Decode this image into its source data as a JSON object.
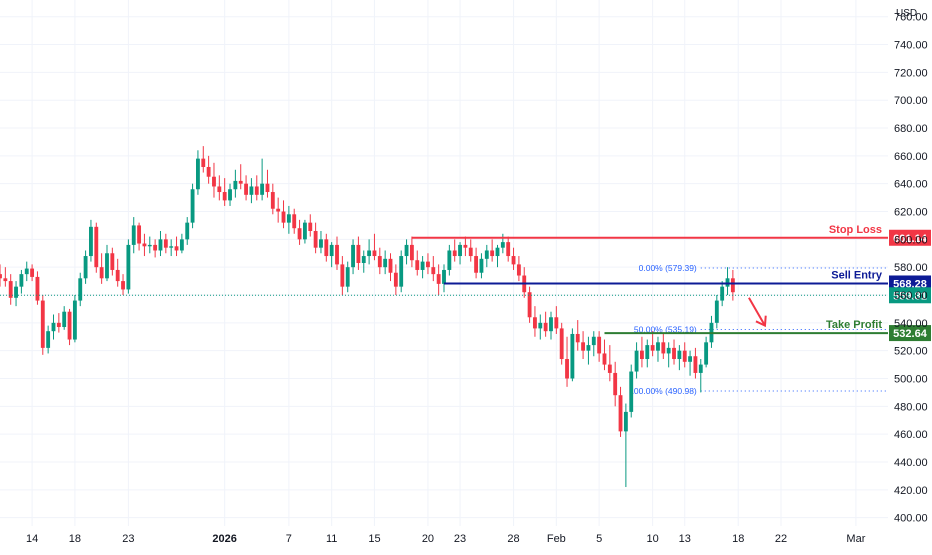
{
  "chart_data": {
    "type": "candlestick",
    "currency_label": "USD",
    "y_ticks": [
      400,
      420,
      440,
      460,
      480,
      500,
      520,
      540,
      560,
      580,
      600,
      620,
      640,
      660,
      680,
      700,
      720,
      740,
      760
    ],
    "y_tick_labels": [
      "400.00",
      "420.00",
      "440.00",
      "460.00",
      "480.00",
      "500.00",
      "520.00",
      "540.00",
      "560.00",
      "580.00",
      "600.00",
      "620.00",
      "640.00",
      "660.00",
      "680.00",
      "700.00",
      "720.00",
      "740.00",
      "760.00"
    ],
    "ylim": [
      394,
      772
    ],
    "x_ticks": [
      {
        "label": "14",
        "day": -18
      },
      {
        "label": "18",
        "day": -14
      },
      {
        "label": "23",
        "day": -9
      },
      {
        "label": "2026",
        "day": 0,
        "bold": true
      },
      {
        "label": "7",
        "day": 6
      },
      {
        "label": "11",
        "day": 10
      },
      {
        "label": "15",
        "day": 14
      },
      {
        "label": "20",
        "day": 19
      },
      {
        "label": "23",
        "day": 22
      },
      {
        "label": "28",
        "day": 27
      },
      {
        "label": "Feb",
        "day": 31
      },
      {
        "label": "5",
        "day": 35
      },
      {
        "label": "10",
        "day": 40
      },
      {
        "label": "13",
        "day": 43
      },
      {
        "label": "18",
        "day": 48
      },
      {
        "label": "22",
        "day": 52
      },
      {
        "label": "Mar",
        "day": 59
      }
    ],
    "xlim": [
      -21,
      62
    ],
    "ohlc": [
      [
        -21,
        575,
        582,
        566,
        572
      ],
      [
        -20.5,
        572,
        580,
        566,
        570
      ],
      [
        -20,
        570,
        575,
        553,
        558
      ],
      [
        -19.5,
        558,
        570,
        552,
        566
      ],
      [
        -19,
        566,
        578,
        561,
        575
      ],
      [
        -18.5,
        575,
        584,
        570,
        579
      ],
      [
        -18,
        579,
        582,
        570,
        573
      ],
      [
        -17.5,
        573,
        577,
        553,
        556
      ],
      [
        -17,
        556,
        560,
        517,
        522
      ],
      [
        -16.5,
        522,
        538,
        518,
        534
      ],
      [
        -16,
        534,
        546,
        528,
        540
      ],
      [
        -15.5,
        540,
        547,
        533,
        537
      ],
      [
        -15,
        537,
        552,
        535,
        548
      ],
      [
        -14.5,
        548,
        550,
        524,
        528
      ],
      [
        -14,
        528,
        560,
        526,
        556
      ],
      [
        -13.5,
        556,
        576,
        552,
        572
      ],
      [
        -13,
        572,
        592,
        568,
        588
      ],
      [
        -12.5,
        588,
        614,
        584,
        609
      ],
      [
        -12,
        609,
        612,
        576,
        580
      ],
      [
        -11.5,
        580,
        590,
        568,
        572
      ],
      [
        -11,
        572,
        596,
        570,
        590
      ],
      [
        -10.5,
        590,
        594,
        574,
        578
      ],
      [
        -10,
        578,
        586,
        566,
        570
      ],
      [
        -9.5,
        570,
        575,
        560,
        564
      ],
      [
        -9,
        564,
        600,
        561,
        596
      ],
      [
        -8.5,
        596,
        616,
        590,
        610
      ],
      [
        -8,
        610,
        612,
        592,
        597
      ],
      [
        -7.5,
        597,
        604,
        588,
        595
      ],
      [
        -7,
        595,
        602,
        590,
        596
      ],
      [
        -6.5,
        596,
        600,
        587,
        592
      ],
      [
        -6,
        592,
        606,
        588,
        600
      ],
      [
        -5.5,
        600,
        604,
        590,
        594
      ],
      [
        -5,
        594,
        600,
        588,
        595
      ],
      [
        -4.5,
        595,
        602,
        588,
        592
      ],
      [
        -4,
        592,
        604,
        590,
        600
      ],
      [
        -3.5,
        600,
        616,
        596,
        612
      ],
      [
        -3,
        612,
        640,
        608,
        636
      ],
      [
        -2.5,
        636,
        664,
        632,
        658
      ],
      [
        -2,
        658,
        667,
        648,
        652
      ],
      [
        -1.5,
        652,
        660,
        640,
        645
      ],
      [
        -1,
        645,
        655,
        630,
        638
      ],
      [
        -0.5,
        638,
        646,
        628,
        634
      ],
      [
        0,
        634,
        644,
        624,
        628
      ],
      [
        0.5,
        628,
        640,
        624,
        636
      ],
      [
        1,
        636,
        650,
        630,
        642
      ],
      [
        1.5,
        642,
        654,
        636,
        640
      ],
      [
        2,
        640,
        646,
        628,
        632
      ],
      [
        2.5,
        632,
        644,
        626,
        638
      ],
      [
        3,
        638,
        646,
        628,
        632
      ],
      [
        3.5,
        632,
        658,
        628,
        640
      ],
      [
        4,
        640,
        650,
        630,
        634
      ],
      [
        4.5,
        634,
        640,
        618,
        622
      ],
      [
        5,
        622,
        630,
        612,
        620
      ],
      [
        5.5,
        620,
        628,
        608,
        612
      ],
      [
        6,
        612,
        624,
        604,
        618
      ],
      [
        6.5,
        618,
        622,
        604,
        608
      ],
      [
        7,
        608,
        614,
        596,
        600
      ],
      [
        7.5,
        600,
        614,
        597,
        612
      ],
      [
        8,
        612,
        618,
        602,
        606
      ],
      [
        8.5,
        606,
        612,
        590,
        594
      ],
      [
        9,
        594,
        606,
        590,
        600
      ],
      [
        9.5,
        600,
        604,
        584,
        588
      ],
      [
        10,
        588,
        598,
        580,
        596
      ],
      [
        10.5,
        596,
        602,
        578,
        582
      ],
      [
        11,
        582,
        588,
        560,
        566
      ],
      [
        11.5,
        566,
        584,
        562,
        580
      ],
      [
        12,
        580,
        600,
        575,
        596
      ],
      [
        12.5,
        596,
        602,
        578,
        583
      ],
      [
        13,
        583,
        592,
        576,
        588
      ],
      [
        13.5,
        588,
        600,
        582,
        592
      ],
      [
        14,
        592,
        604,
        585,
        588
      ],
      [
        14.5,
        588,
        594,
        575,
        580
      ],
      [
        15,
        580,
        592,
        575,
        586
      ],
      [
        15.5,
        586,
        590,
        570,
        576
      ],
      [
        16,
        576,
        582,
        560,
        566
      ],
      [
        16.5,
        566,
        592,
        562,
        588
      ],
      [
        17,
        588,
        600,
        582,
        596
      ],
      [
        17.5,
        596,
        602,
        580,
        585
      ],
      [
        18,
        585,
        592,
        574,
        578
      ],
      [
        18.5,
        578,
        588,
        572,
        584
      ],
      [
        19,
        584,
        590,
        575,
        580
      ],
      [
        19.5,
        580,
        588,
        570,
        575
      ],
      [
        20,
        575,
        582,
        560,
        568
      ],
      [
        20.5,
        568,
        582,
        562,
        578
      ],
      [
        21,
        578,
        596,
        574,
        592
      ],
      [
        21.5,
        592,
        600,
        584,
        588
      ],
      [
        22,
        588,
        598,
        582,
        596
      ],
      [
        22.5,
        596,
        602,
        588,
        594
      ],
      [
        23,
        594,
        600,
        584,
        588
      ],
      [
        23.5,
        588,
        594,
        572,
        576
      ],
      [
        24,
        576,
        590,
        572,
        586
      ],
      [
        24.5,
        586,
        596,
        580,
        592
      ],
      [
        25,
        592,
        600,
        584,
        588
      ],
      [
        25.5,
        588,
        596,
        580,
        594
      ],
      [
        26,
        594,
        604,
        590,
        598
      ],
      [
        26.5,
        598,
        602,
        584,
        588
      ],
      [
        27,
        588,
        594,
        578,
        582
      ],
      [
        27.5,
        582,
        588,
        570,
        574
      ],
      [
        28,
        574,
        580,
        558,
        562
      ],
      [
        28.5,
        562,
        566,
        540,
        544
      ],
      [
        29,
        544,
        552,
        530,
        536
      ],
      [
        29.5,
        536,
        546,
        528,
        540
      ],
      [
        30,
        540,
        548,
        530,
        534
      ],
      [
        30.5,
        534,
        548,
        528,
        544
      ],
      [
        31,
        544,
        552,
        532,
        536
      ],
      [
        31.5,
        536,
        540,
        510,
        514
      ],
      [
        32,
        514,
        530,
        494,
        500
      ],
      [
        32.5,
        500,
        536,
        498,
        532
      ],
      [
        33,
        532,
        542,
        520,
        526
      ],
      [
        33.5,
        526,
        534,
        514,
        520
      ],
      [
        34,
        520,
        530,
        510,
        524
      ],
      [
        34.5,
        524,
        534,
        516,
        530
      ],
      [
        35,
        530,
        534,
        512,
        518
      ],
      [
        35.5,
        518,
        528,
        506,
        510
      ],
      [
        36,
        510,
        524,
        498,
        504
      ],
      [
        36.5,
        504,
        512,
        480,
        488
      ],
      [
        37,
        488,
        494,
        458,
        462
      ],
      [
        37.5,
        462,
        482,
        422,
        476
      ],
      [
        38,
        476,
        510,
        472,
        505
      ],
      [
        38.5,
        505,
        526,
        500,
        520
      ],
      [
        39,
        520,
        530,
        508,
        514
      ],
      [
        39.5,
        514,
        528,
        508,
        524
      ],
      [
        40,
        524,
        534,
        516,
        520
      ],
      [
        40.5,
        520,
        530,
        512,
        526
      ],
      [
        41,
        526,
        532,
        514,
        518
      ],
      [
        41.5,
        518,
        526,
        508,
        522
      ],
      [
        42,
        522,
        528,
        510,
        514
      ],
      [
        42.5,
        514,
        524,
        506,
        520
      ],
      [
        43,
        520,
        526,
        508,
        512
      ],
      [
        43.5,
        512,
        520,
        502,
        516
      ],
      [
        44,
        516,
        522,
        500,
        504
      ],
      [
        44.5,
        504,
        514,
        490,
        510
      ],
      [
        45,
        510,
        530,
        508,
        526
      ],
      [
        45.5,
        526,
        545,
        522,
        540
      ],
      [
        46,
        540,
        560,
        536,
        556
      ],
      [
        46.5,
        556,
        570,
        552,
        566
      ],
      [
        47,
        566,
        580,
        560,
        572
      ],
      [
        47.5,
        572,
        578,
        556,
        562
      ]
    ],
    "levels": [
      {
        "name": "Stop Loss",
        "value": 601.14,
        "label": "601.14",
        "color": "#f23645",
        "text_color": "#f23645",
        "start_day": 17.5,
        "style": "solid"
      },
      {
        "name": "Sell Entry",
        "value": 568.28,
        "label": "568.28",
        "color": "#0d1b96",
        "text_color": "#0d1b96",
        "start_day": 20.5,
        "style": "solid"
      },
      {
        "name": "Take Profit",
        "value": 532.64,
        "label": "532.64",
        "color": "#2e7d32",
        "text_color": "#2e7d32",
        "start_day": 35.5,
        "style": "solid"
      }
    ],
    "current_price": {
      "value": 559.81,
      "label": "559.81",
      "color": "#089981"
    },
    "fib_levels": [
      {
        "label": "0.00% (579.39)",
        "value": 579.39,
        "start_day": 44.5
      },
      {
        "label": "50.00% (535.19)",
        "value": 535.19,
        "start_day": 44.5
      },
      {
        "label": "100.00% (490.98)",
        "value": 490.98,
        "start_day": 44.5
      }
    ],
    "fib_color": "#2962ff",
    "arrow": {
      "from_day": 49,
      "from_value": 558,
      "to_day": 50.5,
      "to_value": 538,
      "color": "#f23645"
    },
    "colors": {
      "up": "#089981",
      "down": "#f23645",
      "grid": "#f0f3fa",
      "axis_text": "#131722"
    }
  }
}
